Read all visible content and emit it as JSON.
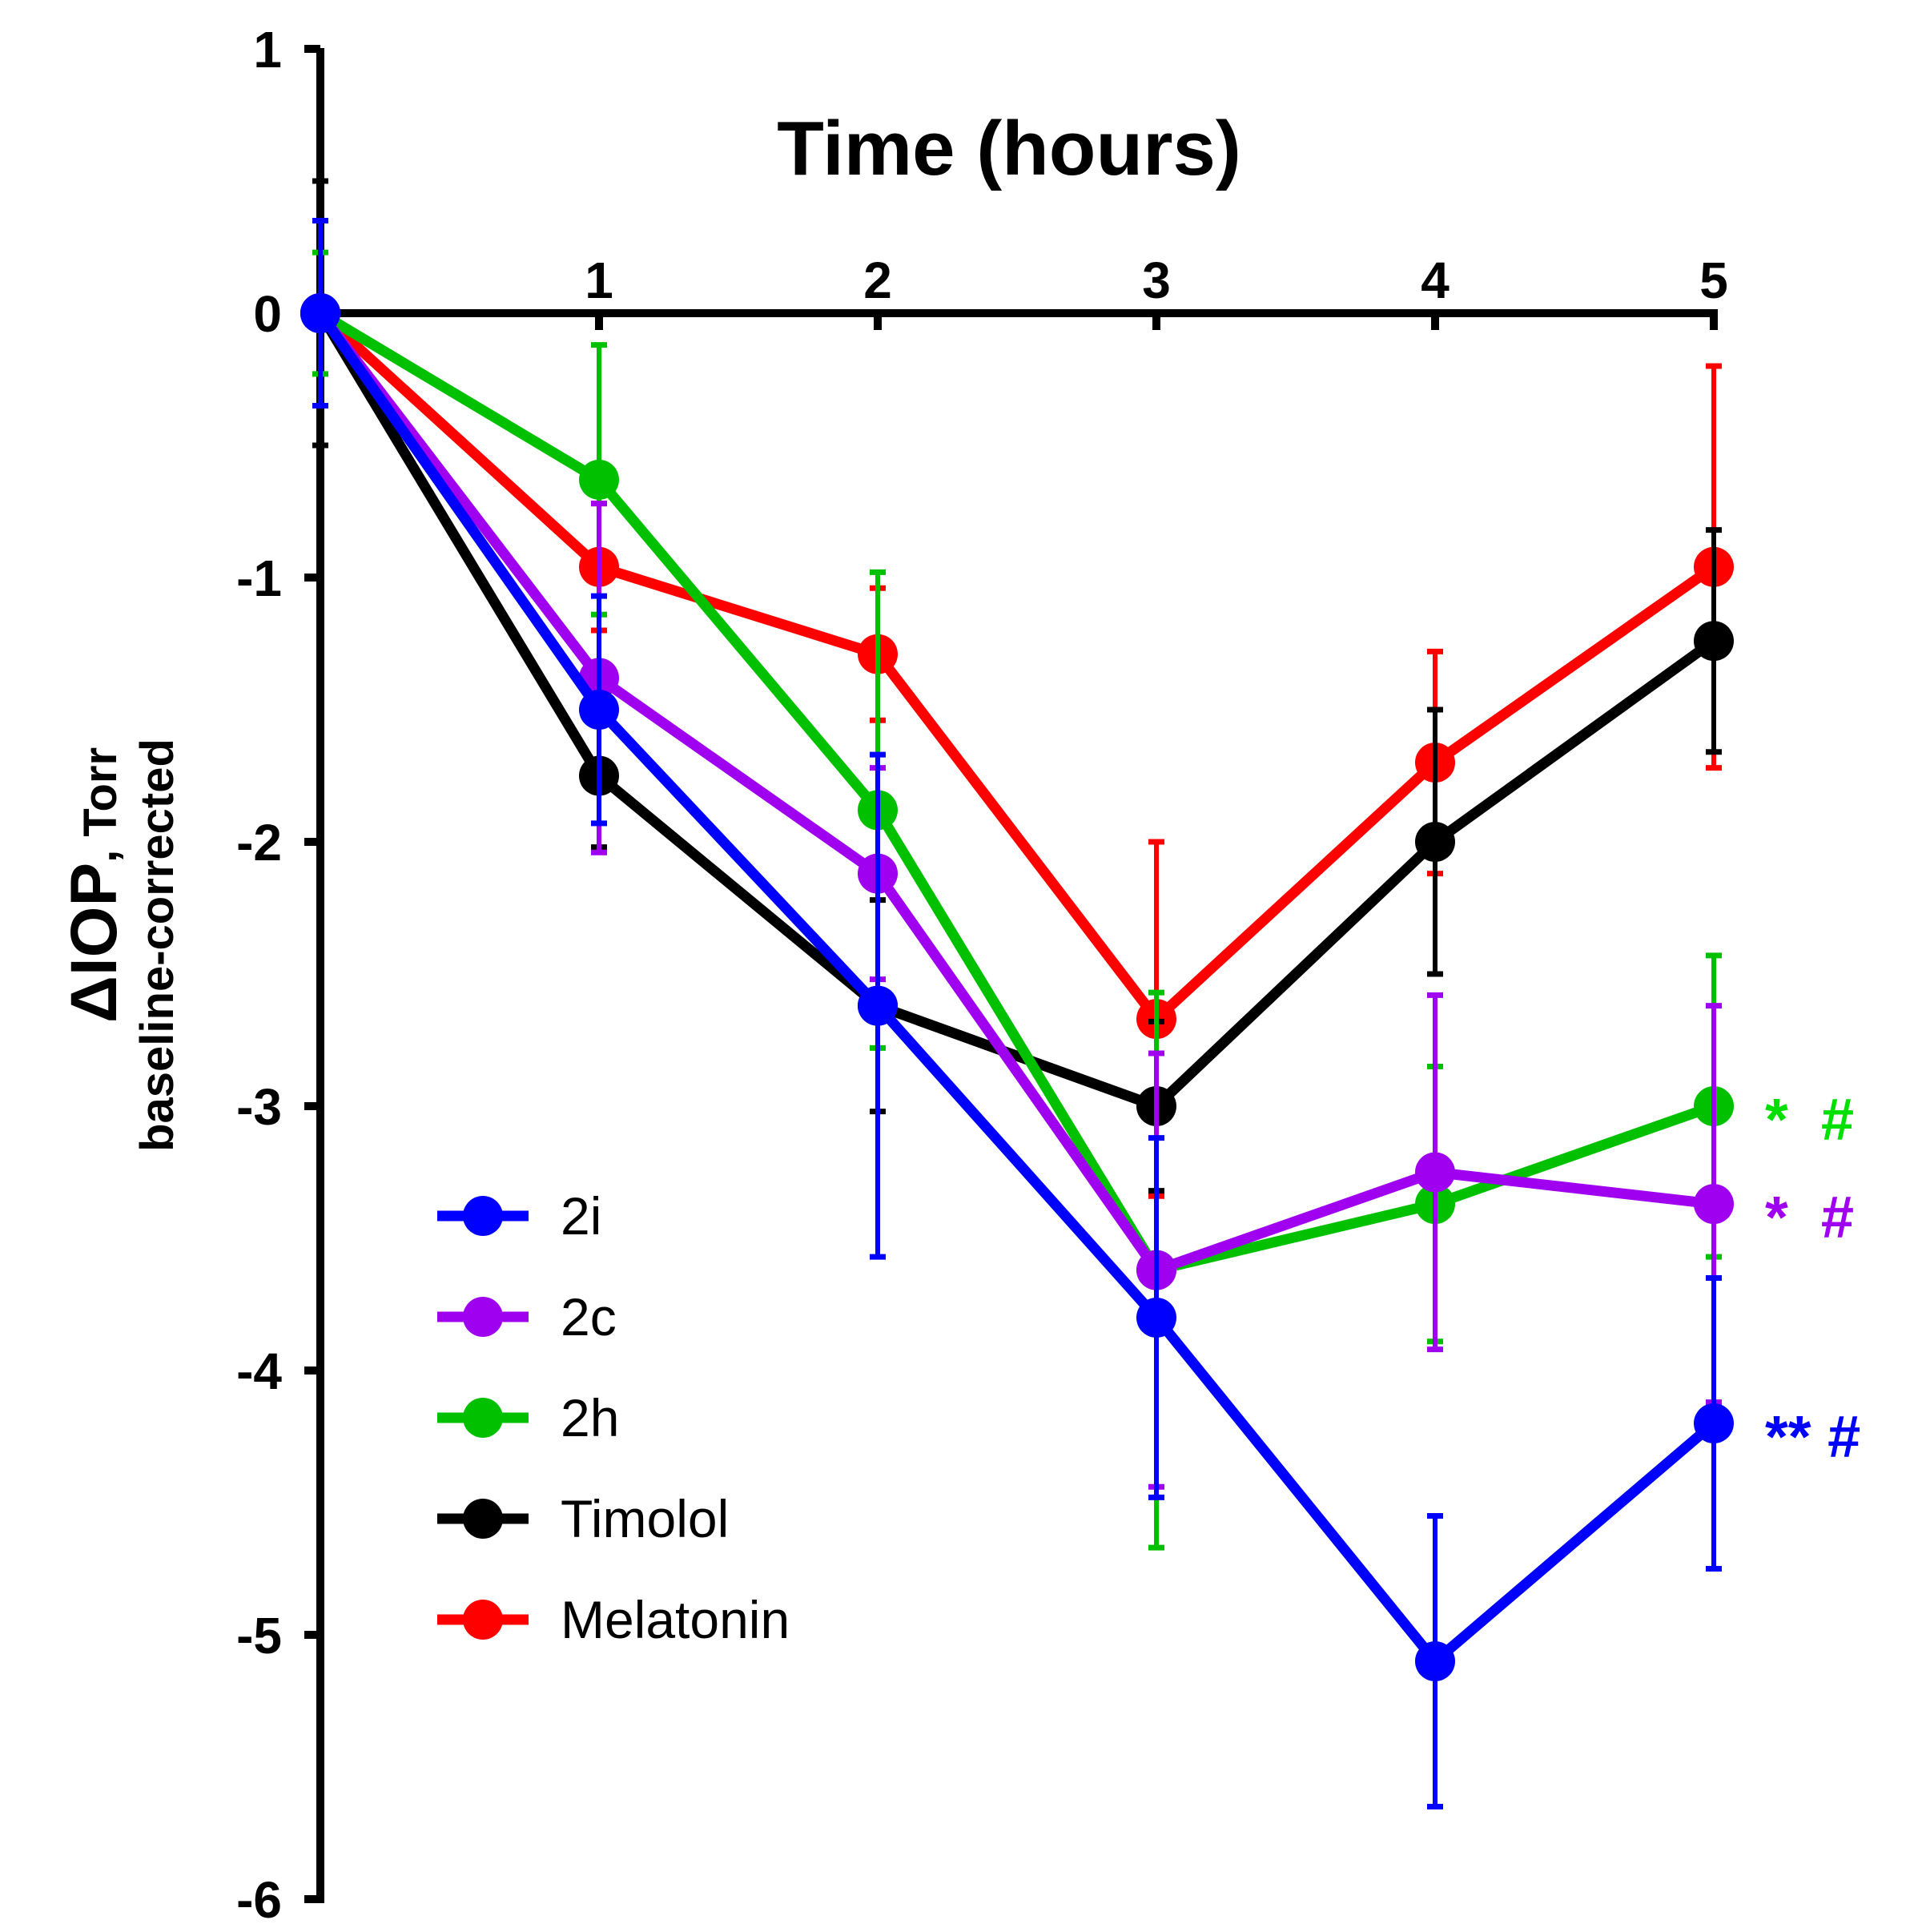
{
  "chart_data": {
    "type": "line",
    "title": "",
    "xlabel": "Time (hours)",
    "ylabel_main": "ΔIOP",
    "ylabel_unit": ", Torr",
    "ylabel_sub": "baseline-corrected",
    "x": [
      0,
      1,
      2,
      3,
      4,
      5
    ],
    "x_tick_labels": [
      "1",
      "2",
      "3",
      "4",
      "5"
    ],
    "y_tick_labels": [
      "1",
      "0",
      "-1",
      "-2",
      "-3",
      "-4",
      "-5",
      "-6"
    ],
    "xlim": [
      0,
      5
    ],
    "ylim": [
      -6,
      1
    ],
    "grid": false,
    "legend_position": "bottom-left",
    "series": [
      {
        "name": "Melatonin",
        "color": "#ff0000",
        "values": [
          0,
          -0.96,
          -1.29,
          -2.67,
          -1.7,
          -0.96
        ],
        "err": [
          0.35,
          0.24,
          0.25,
          0.67,
          0.42,
          0.76
        ]
      },
      {
        "name": "Timolol",
        "color": "#000000",
        "values": [
          0,
          -1.75,
          -2.62,
          -3.0,
          -2.0,
          -1.24
        ],
        "err": [
          0.5,
          0.27,
          0.4,
          0.32,
          0.5,
          0.42
        ]
      },
      {
        "name": "2h",
        "color": "#00c000",
        "values": [
          0,
          -0.63,
          -1.88,
          -3.62,
          -3.37,
          -3.0
        ],
        "err": [
          0.23,
          0.51,
          0.9,
          1.05,
          0.52,
          0.57
        ]
      },
      {
        "name": "2c",
        "color": "#a000f0",
        "values": [
          0,
          -1.38,
          -2.12,
          -3.62,
          -3.25,
          -3.37
        ],
        "err": [
          0.35,
          0.66,
          0.4,
          0.82,
          0.67,
          0.75
        ]
      },
      {
        "name": "2i",
        "color": "#0000ff",
        "values": [
          0,
          -1.5,
          -2.62,
          -3.8,
          -5.1,
          -4.2
        ],
        "err": [
          0.35,
          0.43,
          0.95,
          0.68,
          0.55,
          0.55
        ]
      }
    ],
    "legend_order": [
      "2i",
      "2c",
      "2h",
      "Timolol",
      "Melatonin"
    ],
    "annotations": [
      {
        "text": "*  #",
        "series": "2h",
        "color": "#00e000"
      },
      {
        "text": "*  #",
        "series": "2c",
        "color": "#a000f0"
      },
      {
        "text": "** #",
        "series": "2i",
        "color": "#0000ff"
      }
    ]
  }
}
